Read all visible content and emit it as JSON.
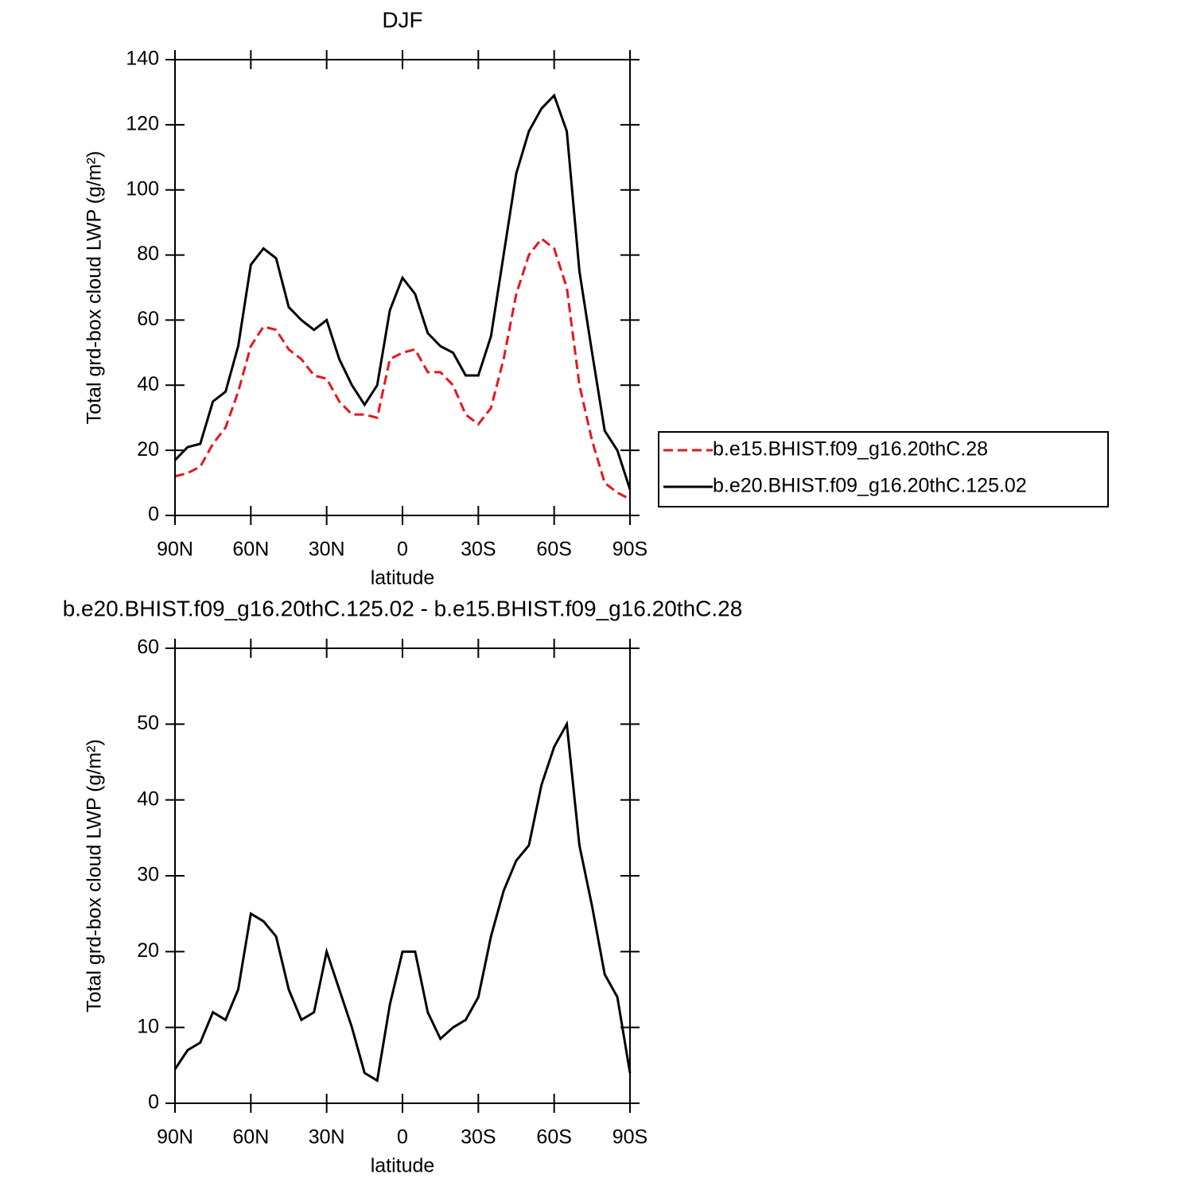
{
  "chart_data": [
    {
      "type": "line",
      "title": "DJF",
      "x_label": "latitude",
      "y_label": "Total grd-box cloud LWP (g/m²)",
      "x": [
        90,
        85,
        80,
        75,
        70,
        65,
        60,
        55,
        50,
        45,
        40,
        35,
        30,
        25,
        20,
        15,
        10,
        5,
        0,
        -5,
        -10,
        -15,
        -20,
        -25,
        -30,
        -35,
        -40,
        -45,
        -50,
        -55,
        -60,
        -65,
        -70,
        -75,
        -80,
        -85,
        -90
      ],
      "series": [
        {
          "name": "b.e15.BHIST.f09_g16.20thC.28",
          "color": "#e8161b",
          "style": "dashed",
          "values": [
            12,
            13,
            15,
            22,
            27,
            38,
            52,
            58,
            57,
            51,
            48,
            43,
            42,
            35,
            31,
            31,
            30,
            48,
            50,
            51,
            44,
            44,
            40,
            31,
            28,
            33,
            48,
            68,
            80,
            85,
            82,
            70,
            40,
            23,
            10,
            7,
            5
          ]
        },
        {
          "name": "b.e20.BHIST.f09_g16.20thC.125.02",
          "color": "#000000",
          "style": "solid",
          "values": [
            17,
            21,
            22,
            35,
            38,
            52,
            77,
            82,
            79,
            64,
            60,
            57,
            60,
            48,
            40,
            34,
            40,
            63,
            73,
            68,
            56,
            52,
            50,
            43,
            43,
            55,
            80,
            105,
            118,
            125,
            129,
            118,
            75,
            50,
            26,
            20,
            8
          ]
        }
      ],
      "xlim": [
        90,
        -90
      ],
      "xticks": [
        {
          "value": 90,
          "label": "90N"
        },
        {
          "value": 60,
          "label": "60N"
        },
        {
          "value": 30,
          "label": "30N"
        },
        0,
        {
          "value": -30,
          "label": "30S"
        },
        {
          "value": -60,
          "label": "60S"
        },
        {
          "value": -90,
          "label": "90S"
        }
      ],
      "ylim": [
        0,
        140
      ],
      "yticks": [
        0,
        20,
        40,
        60,
        80,
        100,
        120,
        140
      ],
      "legend": "right"
    },
    {
      "type": "line",
      "title": "b.e20.BHIST.f09_g16.20thC.125.02 - b.e15.BHIST.f09_g16.20thC.28",
      "x_label": "latitude",
      "y_label": "Total grd-box cloud LWP (g/m²)",
      "x": [
        90,
        85,
        80,
        75,
        70,
        65,
        60,
        55,
        50,
        45,
        40,
        35,
        30,
        25,
        20,
        15,
        10,
        5,
        0,
        -5,
        -10,
        -15,
        -20,
        -25,
        -30,
        -35,
        -40,
        -45,
        -50,
        -55,
        -60,
        -65,
        -70,
        -75,
        -80,
        -85,
        -90
      ],
      "series": [
        {
          "color": "#000000",
          "style": "solid",
          "values": [
            4.5,
            7,
            8,
            12,
            11,
            15,
            25,
            24,
            22,
            15,
            11,
            12,
            20,
            15,
            10,
            4,
            3,
            13,
            20,
            20,
            12,
            8.5,
            10,
            11,
            14,
            22,
            28,
            32,
            34,
            42,
            47,
            50,
            34,
            26,
            17,
            14,
            4
          ]
        }
      ],
      "xlim": [
        90,
        -90
      ],
      "xticks": [
        {
          "value": 90,
          "label": "90N"
        },
        {
          "value": 60,
          "label": "60N"
        },
        {
          "value": 30,
          "label": "30N"
        },
        0,
        {
          "value": -30,
          "label": "30S"
        },
        {
          "value": -60,
          "label": "60S"
        },
        {
          "value": -90,
          "label": "90S"
        }
      ],
      "ylim": [
        0,
        60
      ],
      "yticks": [
        0,
        10,
        20,
        30,
        40,
        50,
        60
      ]
    }
  ]
}
